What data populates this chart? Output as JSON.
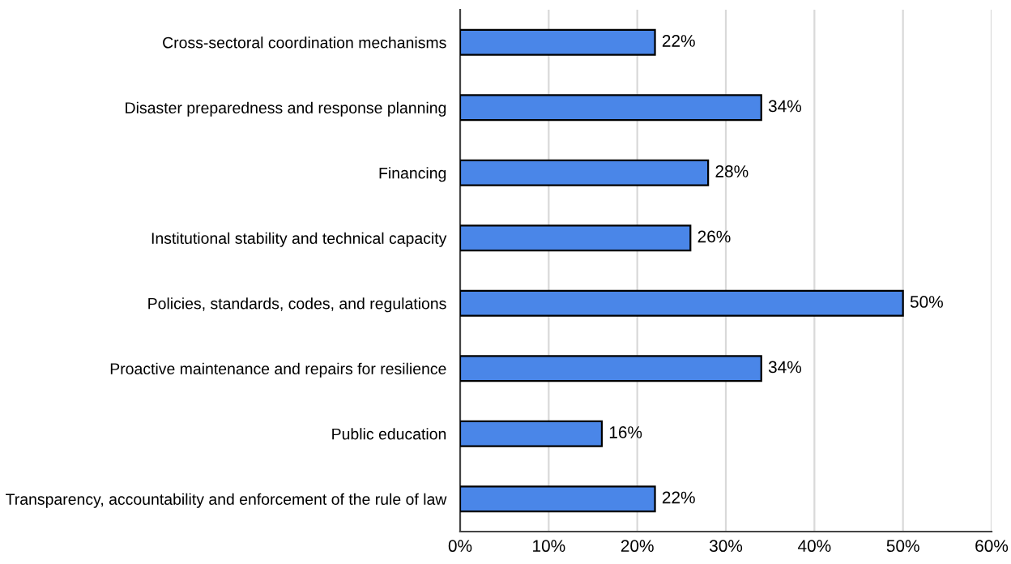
{
  "chart_data": {
    "type": "bar",
    "orientation": "horizontal",
    "categories": [
      "Cross-sectoral coordination mechanisms",
      "Disaster preparedness and response planning",
      "Financing",
      "Institutional stability and technical capacity",
      "Policies, standards, codes, and regulations",
      "Proactive maintenance and repairs for resilience",
      "Public education",
      "Transparency, accountability and enforcement of the rule of law"
    ],
    "values": [
      22,
      34,
      28,
      26,
      50,
      34,
      16,
      22
    ],
    "color": "#4a86e8",
    "value_labels": [
      "22%",
      "34%",
      "28%",
      "26%",
      "50%",
      "34%",
      "16%",
      "22%"
    ],
    "xlim": [
      0,
      60
    ],
    "xticks": [
      {
        "value": 0,
        "label": "0%"
      },
      {
        "value": 10,
        "label": "10%"
      },
      {
        "value": 20,
        "label": "20%"
      },
      {
        "value": 30,
        "label": "30%"
      },
      {
        "value": 40,
        "label": "40%"
      },
      {
        "value": 50,
        "label": "50%"
      },
      {
        "value": 60,
        "label": "60%"
      }
    ],
    "grid": "x"
  }
}
